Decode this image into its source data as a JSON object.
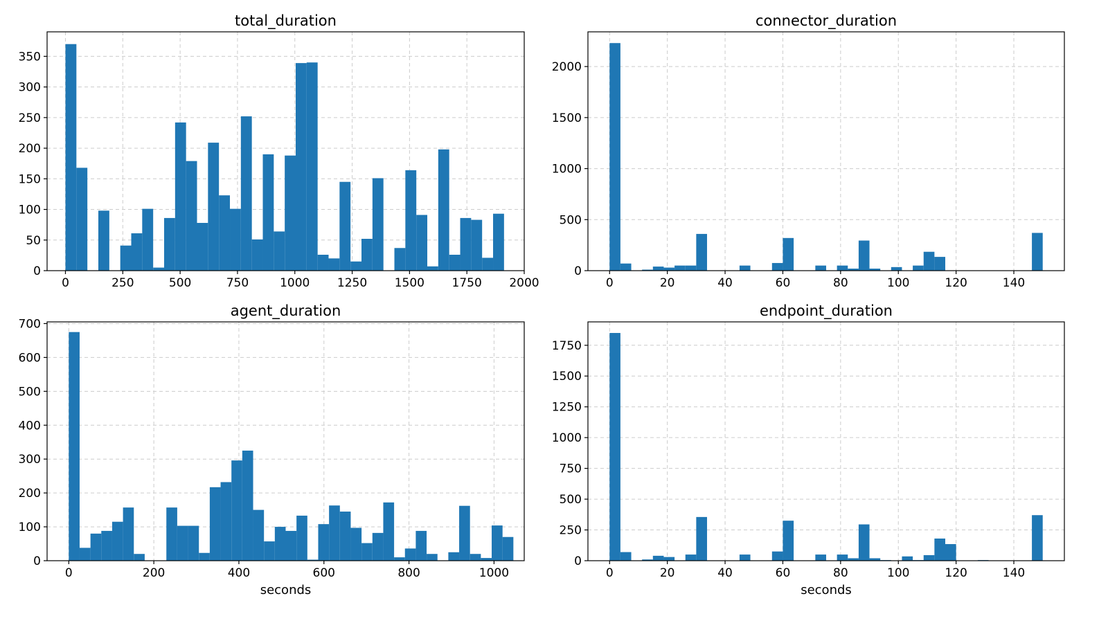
{
  "chart_data": [
    {
      "type": "bar",
      "title": "total_duration",
      "xlabel": "",
      "xlim": [
        -80,
        2000
      ],
      "ylim": [
        0,
        390
      ],
      "bin_width": 47.8,
      "bin_start": 0,
      "values": [
        370,
        168,
        0,
        98,
        0,
        41,
        61,
        101,
        5,
        86,
        242,
        179,
        78,
        209,
        123,
        101,
        252,
        51,
        190,
        64,
        188,
        339,
        340,
        26,
        20,
        145,
        15,
        52,
        151,
        0,
        37,
        164,
        91,
        7,
        198,
        26,
        86,
        83,
        21,
        93
      ],
      "xticks": [
        "0",
        "250",
        "500",
        "750",
        "1000",
        "1250",
        "1500",
        "1750",
        "2000"
      ],
      "xtick_values": [
        0,
        250,
        500,
        750,
        1000,
        1250,
        1500,
        1750,
        2000
      ],
      "yticks": [
        "0",
        "50",
        "100",
        "150",
        "200",
        "250",
        "300",
        "350"
      ],
      "ytick_values": [
        0,
        50,
        100,
        150,
        200,
        250,
        300,
        350
      ],
      "color": "#1f77b4",
      "grid": true
    },
    {
      "type": "bar",
      "title": "connector_duration",
      "xlabel": "",
      "xlim": [
        -7.5,
        157.5
      ],
      "ylim": [
        0,
        2340
      ],
      "bin_width": 3.75,
      "bin_start": 0,
      "values": [
        2230,
        70,
        0,
        10,
        40,
        30,
        50,
        50,
        360,
        0,
        0,
        0,
        50,
        0,
        0,
        75,
        320,
        0,
        0,
        50,
        0,
        50,
        20,
        295,
        20,
        0,
        35,
        0,
        50,
        185,
        135,
        0,
        0,
        0,
        0,
        0,
        0,
        0,
        0,
        370
      ],
      "xticks": [
        "0",
        "20",
        "40",
        "60",
        "80",
        "100",
        "120",
        "140"
      ],
      "xtick_values": [
        0,
        20,
        40,
        60,
        80,
        100,
        120,
        140
      ],
      "yticks": [
        "0",
        "500",
        "1000",
        "1500",
        "2000"
      ],
      "ytick_values": [
        0,
        500,
        1000,
        1500,
        2000
      ],
      "color": "#1f77b4",
      "grid": true
    },
    {
      "type": "bar",
      "title": "agent_duration",
      "xlabel": "seconds",
      "xlim": [
        -51,
        1071
      ],
      "ylim": [
        0,
        705
      ],
      "bin_width": 25.5,
      "bin_start": 0,
      "values": [
        675,
        38,
        80,
        88,
        115,
        157,
        20,
        0,
        0,
        157,
        103,
        103,
        23,
        217,
        232,
        296,
        325,
        150,
        57,
        100,
        88,
        133,
        3,
        108,
        163,
        145,
        97,
        52,
        82,
        172,
        10,
        36,
        88,
        20,
        0,
        25,
        162,
        20,
        8,
        104,
        70
      ],
      "xticks": [
        "0",
        "200",
        "400",
        "600",
        "800",
        "1000"
      ],
      "xtick_values": [
        0,
        200,
        400,
        600,
        800,
        1000
      ],
      "yticks": [
        "0",
        "100",
        "200",
        "300",
        "400",
        "500",
        "600",
        "700"
      ],
      "ytick_values": [
        0,
        100,
        200,
        300,
        400,
        500,
        600,
        700
      ],
      "color": "#1f77b4",
      "grid": true
    },
    {
      "type": "bar",
      "title": "endpoint_duration",
      "xlabel": "seconds",
      "xlim": [
        -7.5,
        157.5
      ],
      "ylim": [
        0,
        1940
      ],
      "bin_width": 3.75,
      "bin_start": 0,
      "values": [
        1850,
        70,
        0,
        10,
        40,
        30,
        0,
        50,
        355,
        0,
        0,
        0,
        50,
        0,
        0,
        75,
        325,
        0,
        0,
        50,
        0,
        50,
        20,
        295,
        20,
        5,
        0,
        35,
        5,
        45,
        180,
        135,
        0,
        0,
        5,
        0,
        0,
        0,
        0,
        370
      ],
      "xticks": [
        "0",
        "20",
        "40",
        "60",
        "80",
        "100",
        "120",
        "140"
      ],
      "xtick_values": [
        0,
        20,
        40,
        60,
        80,
        100,
        120,
        140
      ],
      "yticks": [
        "0",
        "250",
        "500",
        "750",
        "1000",
        "1250",
        "1500",
        "1750"
      ],
      "ytick_values": [
        0,
        250,
        500,
        750,
        1000,
        1250,
        1500,
        1750
      ],
      "color": "#1f77b4",
      "grid": true
    }
  ]
}
